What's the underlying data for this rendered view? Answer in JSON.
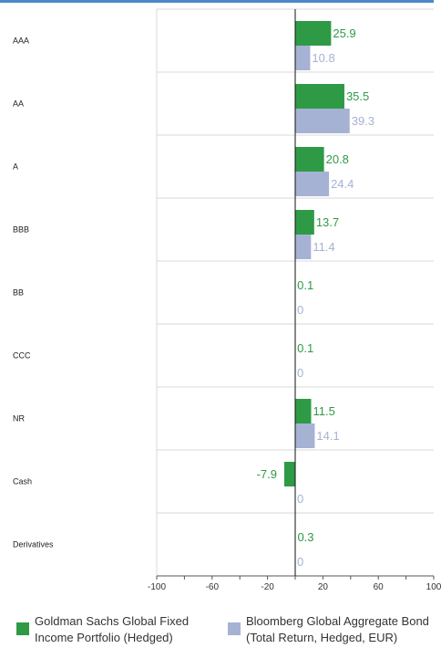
{
  "chart_data": {
    "type": "bar",
    "orientation": "horizontal",
    "categories": [
      "AAA",
      "AA",
      "A",
      "BBB",
      "BB",
      "CCC",
      "NR",
      "Cash",
      "Derivatives"
    ],
    "series": [
      {
        "name": "Goldman Sachs Global Fixed Income Portfolio (Hedged)",
        "values": [
          25.9,
          35.5,
          20.8,
          13.7,
          0.1,
          0.1,
          11.5,
          -7.9,
          0.3
        ],
        "labels": [
          "25.9",
          "35.5",
          "20.8",
          "13.7",
          "0.1",
          "0.1",
          "11.5",
          "-7.9",
          "0.3"
        ],
        "color": "#2f9a45"
      },
      {
        "name": "Bloomberg Global Aggregate Bond (Total Return, Hedged, EUR)",
        "values": [
          10.8,
          39.3,
          24.4,
          11.4,
          0,
          0,
          14.1,
          0,
          0
        ],
        "labels": [
          "10.8",
          "39.3",
          "24.4",
          "11.4",
          "0",
          "0",
          "14.1",
          "0",
          "0"
        ],
        "color": "#a5b2d4"
      }
    ],
    "xlim": [
      -100,
      100
    ],
    "x_ticks": [
      "-100",
      "-60",
      "-20",
      "20",
      "60",
      "100"
    ],
    "grid": true,
    "legend_position": "bottom"
  }
}
